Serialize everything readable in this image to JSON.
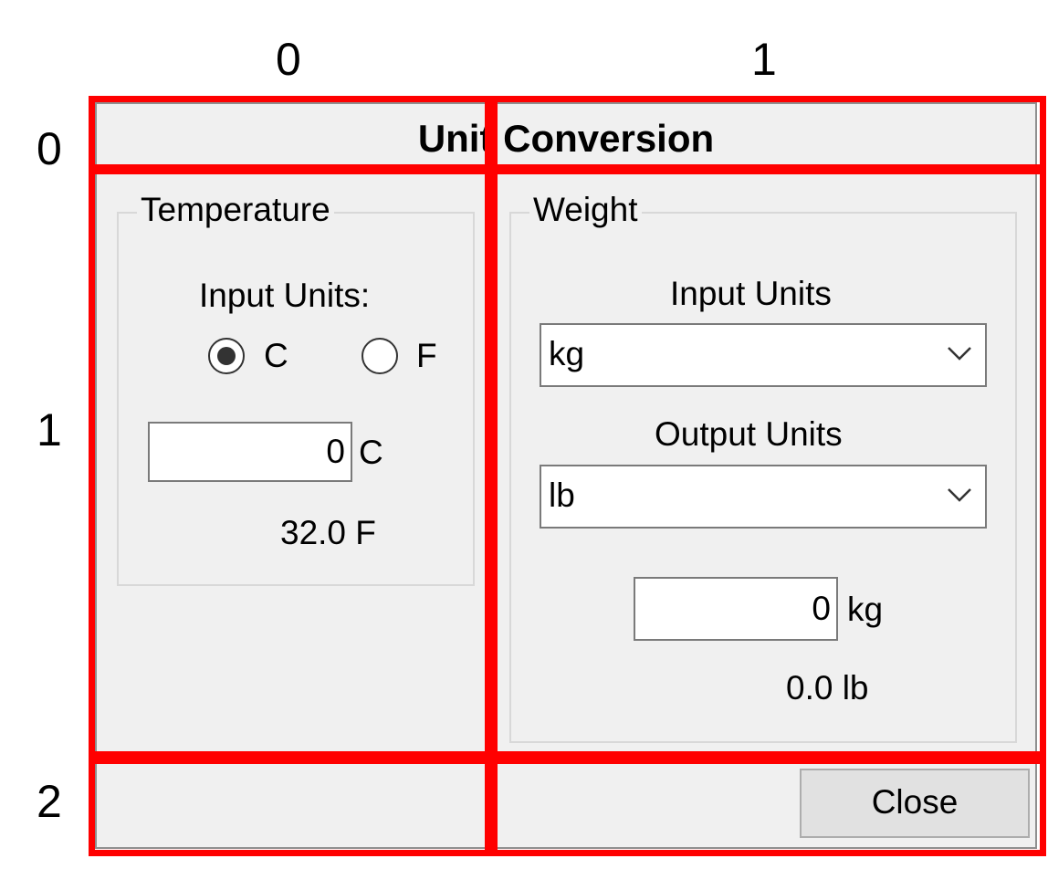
{
  "grid": {
    "columns": [
      "0",
      "1"
    ],
    "rows": [
      "0",
      "1",
      "2"
    ]
  },
  "window": {
    "title": "Unit Conversion"
  },
  "temperature": {
    "group_label": "Temperature",
    "input_units_label": "Input Units:",
    "options": [
      {
        "label": "C",
        "selected": true
      },
      {
        "label": "F",
        "selected": false
      }
    ],
    "input_value": "0",
    "input_unit": "C",
    "result": "32.0 F"
  },
  "weight": {
    "group_label": "Weight",
    "input_units_label": "Input Units",
    "input_units_value": "kg",
    "output_units_label": "Output Units",
    "output_units_value": "lb",
    "input_value": "0",
    "input_unit": "kg",
    "result": "0.0 lb"
  },
  "footer": {
    "close_label": "Close"
  },
  "colors": {
    "highlight": "#ff0000",
    "window_bg": "#f0f0f0"
  }
}
